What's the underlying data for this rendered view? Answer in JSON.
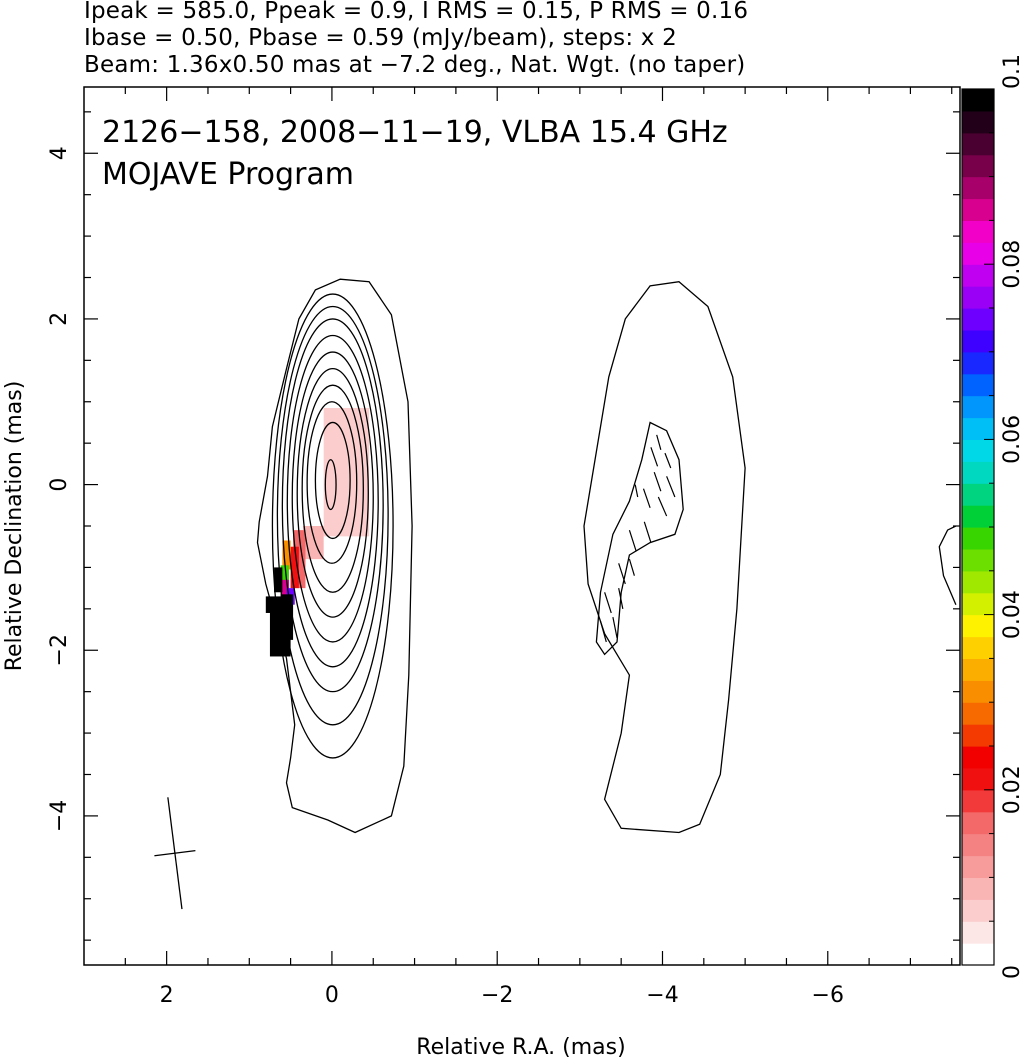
{
  "header": {
    "line1": "Ipeak = 585.0, Ppeak = 0.9, I RMS = 0.15, P RMS = 0.16",
    "line2": "Ibase = 0.50, Pbase = 0.59 (mJy/beam), steps: x 2",
    "line3": "Beam: 1.36x0.50 mas at −7.2 deg., Nat. Wgt. (no taper)"
  },
  "chart_data": {
    "type": "contour",
    "title_line1": "2126−158, 2008−11−19, VLBA 15.4 GHz",
    "title_line2": "MOJAVE Program",
    "xlabel": "Relative R.A. (mas)",
    "ylabel": "Relative Declination (mas)",
    "xlim": [
      3.0,
      -7.6
    ],
    "ylim": [
      -5.8,
      4.8
    ],
    "x_ticks": [
      {
        "value": 2,
        "label": "2"
      },
      {
        "value": 0,
        "label": "0"
      },
      {
        "value": -2,
        "label": "−2"
      },
      {
        "value": -4,
        "label": "−4"
      },
      {
        "value": -6,
        "label": "−6"
      }
    ],
    "y_ticks": [
      {
        "value": 4,
        "label": "4"
      },
      {
        "value": 2,
        "label": "2"
      },
      {
        "value": 0,
        "label": "0"
      },
      {
        "value": -2,
        "label": "−2"
      },
      {
        "value": -4,
        "label": "−4"
      }
    ],
    "grid": false,
    "beam": {
      "major_mas": 1.36,
      "minor_mas": 0.5,
      "pa_deg": -7.2,
      "center": [
        1.9,
        -4.45
      ]
    },
    "core_contours": [
      {
        "xmin": -0.05,
        "xmax": 0.08,
        "ymin": -0.3,
        "ymax": 0.3
      },
      {
        "xmin": -0.22,
        "xmax": 0.2,
        "ymin": -0.65,
        "ymax": 0.75
      },
      {
        "xmin": -0.3,
        "xmax": 0.3,
        "ymin": -0.95,
        "ymax": 1.0
      },
      {
        "xmin": -0.38,
        "xmax": 0.36,
        "ymin": -1.3,
        "ymax": 1.2
      },
      {
        "xmin": -0.44,
        "xmax": 0.42,
        "ymin": -1.6,
        "ymax": 1.4
      },
      {
        "xmin": -0.5,
        "xmax": 0.48,
        "ymin": -1.9,
        "ymax": 1.6
      },
      {
        "xmin": -0.56,
        "xmax": 0.54,
        "ymin": -2.2,
        "ymax": 1.8
      },
      {
        "xmin": -0.62,
        "xmax": 0.6,
        "ymin": -2.5,
        "ymax": 2.0
      },
      {
        "xmin": -0.68,
        "xmax": 0.66,
        "ymin": -2.9,
        "ymax": 2.15
      },
      {
        "xmin": -0.74,
        "xmax": 0.72,
        "ymin": -3.3,
        "ymax": 2.3
      }
    ],
    "core_outer_contour": [
      [
        -0.45,
        2.45
      ],
      [
        -0.72,
        2.05
      ],
      [
        -0.92,
        1.0
      ],
      [
        -0.97,
        -0.5
      ],
      [
        -0.93,
        -2.3
      ],
      [
        -0.87,
        -3.4
      ],
      [
        -0.72,
        -4.0
      ],
      [
        -0.28,
        -4.2
      ],
      [
        0.05,
        -4.05
      ],
      [
        0.48,
        -3.9
      ],
      [
        0.55,
        -3.6
      ],
      [
        0.5,
        -3.3
      ],
      [
        0.45,
        -2.9
      ],
      [
        0.55,
        -2.1
      ],
      [
        0.8,
        -1.2
      ],
      [
        0.9,
        -0.7
      ],
      [
        0.88,
        -0.45
      ],
      [
        0.78,
        0.1
      ],
      [
        0.72,
        0.7
      ],
      [
        0.55,
        1.4
      ],
      [
        0.4,
        2.0
      ],
      [
        0.2,
        2.35
      ],
      [
        -0.1,
        2.48
      ],
      [
        -0.45,
        2.45
      ]
    ],
    "jet_contour_outer": [
      [
        -4.2,
        2.45
      ],
      [
        -4.55,
        2.15
      ],
      [
        -4.85,
        1.3
      ],
      [
        -5.0,
        0.2
      ],
      [
        -4.9,
        -1.5
      ],
      [
        -4.8,
        -2.6
      ],
      [
        -4.7,
        -3.5
      ],
      [
        -4.45,
        -4.1
      ],
      [
        -4.2,
        -4.2
      ],
      [
        -3.5,
        -4.15
      ],
      [
        -3.3,
        -3.8
      ],
      [
        -3.5,
        -3.0
      ],
      [
        -3.6,
        -2.3
      ],
      [
        -3.3,
        -1.8
      ],
      [
        -3.1,
        -1.2
      ],
      [
        -3.05,
        -0.5
      ],
      [
        -3.2,
        0.4
      ],
      [
        -3.35,
        1.3
      ],
      [
        -3.55,
        2.0
      ],
      [
        -3.85,
        2.4
      ],
      [
        -4.2,
        2.45
      ]
    ],
    "jet_contour_inner": [
      [
        -3.85,
        0.75
      ],
      [
        -4.05,
        0.65
      ],
      [
        -4.2,
        0.3
      ],
      [
        -4.25,
        -0.3
      ],
      [
        -4.15,
        -0.6
      ],
      [
        -3.85,
        -0.7
      ],
      [
        -3.6,
        -0.85
      ],
      [
        -3.5,
        -1.3
      ],
      [
        -3.45,
        -1.9
      ],
      [
        -3.3,
        -2.05
      ],
      [
        -3.2,
        -1.9
      ],
      [
        -3.25,
        -1.3
      ],
      [
        -3.4,
        -0.6
      ],
      [
        -3.6,
        -0.2
      ],
      [
        -3.75,
        0.3
      ],
      [
        -3.85,
        0.75
      ]
    ],
    "edge_contour": [
      [
        -7.55,
        -0.5
      ],
      [
        -7.45,
        -0.55
      ],
      [
        -7.35,
        -0.75
      ],
      [
        -7.4,
        -1.1
      ],
      [
        -7.55,
        -1.45
      ]
    ],
    "polarization_pixels": [
      {
        "x": 0.1,
        "y": 0.15,
        "w": 0.55,
        "h": 1.55,
        "value": 0.004
      },
      {
        "x": -0.1,
        "y": 0.1,
        "w": 0.3,
        "h": 1.0,
        "value": 0.006
      },
      {
        "x": 0.35,
        "y": -0.7,
        "w": 0.25,
        "h": 0.4,
        "value": 0.008
      },
      {
        "x": 0.47,
        "y": -0.9,
        "w": 0.15,
        "h": 0.7,
        "value": 0.016
      },
      {
        "x": 0.5,
        "y": -1.0,
        "w": 0.1,
        "h": 0.5,
        "value": 0.02
      },
      {
        "x": 0.6,
        "y": -0.85,
        "w": 0.1,
        "h": 0.35,
        "value": 0.032
      },
      {
        "x": 0.62,
        "y": -1.1,
        "w": 0.1,
        "h": 0.25,
        "value": 0.048
      },
      {
        "x": 0.62,
        "y": -1.25,
        "w": 0.1,
        "h": 0.2,
        "value": 0.088
      },
      {
        "x": 0.55,
        "y": -1.35,
        "w": 0.1,
        "h": 0.2,
        "value": 0.075
      },
      {
        "x": 0.7,
        "y": -1.15,
        "w": 0.1,
        "h": 0.3,
        "value": 0.1
      },
      {
        "x": 0.8,
        "y": -1.45,
        "w": 0.3,
        "h": 0.2,
        "value": 0.1
      },
      {
        "x": 0.75,
        "y": -1.8,
        "w": 0.25,
        "h": 0.55,
        "value": 0.1
      },
      {
        "x": 0.62,
        "y": -1.6,
        "w": 0.15,
        "h": 0.55,
        "value": 0.1
      }
    ],
    "hatch_segments": [
      [
        -3.93,
        0.6,
        -3.98,
        0.42
      ],
      [
        -3.86,
        0.45,
        -3.94,
        0.22
      ],
      [
        -4.03,
        0.38,
        -4.1,
        0.2
      ],
      [
        -3.9,
        0.15,
        -3.98,
        -0.08
      ],
      [
        -4.05,
        0.1,
        -4.15,
        -0.15
      ],
      [
        -3.77,
        -0.05,
        -3.85,
        -0.28
      ],
      [
        -3.95,
        -0.15,
        -4.05,
        -0.38
      ],
      [
        -3.6,
        -0.55,
        -3.68,
        -0.8
      ],
      [
        -3.78,
        -0.45,
        -3.86,
        -0.7
      ],
      [
        -3.47,
        -0.95,
        -3.55,
        -1.2
      ],
      [
        -3.3,
        -1.3,
        -3.38,
        -1.55
      ],
      [
        -3.47,
        -1.25,
        -3.52,
        -1.5
      ],
      [
        -3.25,
        -1.65,
        -3.32,
        -1.9
      ],
      [
        -3.4,
        -1.6,
        -3.45,
        -1.85
      ],
      [
        -3.6,
        -0.9,
        -3.66,
        -1.1
      ],
      [
        -3.67,
        0.0,
        -3.7,
        -0.15
      ]
    ],
    "colorbar": {
      "label": "",
      "range": [
        0.0,
        0.1
      ],
      "tick_labels": [
        "0",
        "0.02",
        "0.04",
        "0.06",
        "0.08",
        "0.1"
      ],
      "tick_values": [
        0,
        0.02,
        0.04,
        0.06,
        0.08,
        0.1
      ],
      "colors": [
        "#ffffff",
        "#fde6e6",
        "#fbcdcd",
        "#f9b4b4",
        "#f79b9b",
        "#f58282",
        "#f36969",
        "#f23a3a",
        "#f01010",
        "#f20000",
        "#f43a00",
        "#f66a00",
        "#f98e00",
        "#fcae00",
        "#ffd000",
        "#fff200",
        "#d2f000",
        "#a0e800",
        "#6cde00",
        "#38d500",
        "#00d038",
        "#00d480",
        "#00d8c0",
        "#00d8e8",
        "#00bef6",
        "#0096fc",
        "#0062ff",
        "#1828ff",
        "#3e00ff",
        "#6e00ff",
        "#9a00f6",
        "#c000f0",
        "#e800e8",
        "#f200c8",
        "#d8008e",
        "#a8006a",
        "#78004a",
        "#4a0030",
        "#22001a",
        "#000000"
      ]
    }
  }
}
